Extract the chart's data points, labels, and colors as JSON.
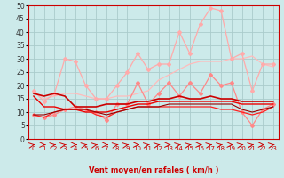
{
  "xlabel": "Vent moyen/en rafales ( km/h )",
  "x": [
    0,
    1,
    2,
    3,
    4,
    5,
    6,
    7,
    8,
    9,
    10,
    11,
    12,
    13,
    14,
    15,
    16,
    17,
    18,
    19,
    20,
    21,
    22,
    23
  ],
  "ylim": [
    0,
    50
  ],
  "yticks": [
    0,
    5,
    10,
    15,
    20,
    25,
    30,
    35,
    40,
    45,
    50
  ],
  "bg_color": "#cceaea",
  "grid_color": "#aacccc",
  "line1_color": "#ffbbbb",
  "line1_values": [
    18,
    15,
    16,
    17,
    17,
    16,
    15,
    15,
    16,
    16,
    17,
    18,
    22,
    24,
    26,
    28,
    29,
    29,
    29,
    30,
    30,
    31,
    28,
    27
  ],
  "line2_color": "#ffaaaa",
  "line2_values": [
    18,
    14,
    17,
    30,
    29,
    20,
    15,
    15,
    20,
    25,
    32,
    26,
    28,
    28,
    40,
    32,
    43,
    49,
    48,
    30,
    32,
    18,
    28,
    28
  ],
  "line3_color": "#ff8888",
  "line3_values": [
    9,
    8,
    9,
    11,
    12,
    11,
    10,
    7,
    13,
    13,
    21,
    13,
    17,
    21,
    16,
    21,
    17,
    24,
    20,
    21,
    10,
    5,
    11,
    13
  ],
  "line4_color": "#cc0000",
  "line4_values": [
    17,
    16,
    17,
    16,
    12,
    12,
    12,
    13,
    13,
    13,
    14,
    14,
    15,
    15,
    16,
    15,
    15,
    16,
    15,
    15,
    14,
    14,
    14,
    14
  ],
  "line5_color": "#ee0000",
  "line5_values": [
    16,
    12,
    12,
    11,
    11,
    10,
    10,
    10,
    11,
    12,
    13,
    13,
    14,
    14,
    14,
    14,
    14,
    14,
    14,
    14,
    13,
    13,
    13,
    13
  ],
  "line6_color": "#ff2222",
  "line6_values": [
    9,
    8,
    10,
    11,
    11,
    11,
    9,
    8,
    10,
    11,
    12,
    12,
    12,
    12,
    12,
    12,
    12,
    12,
    11,
    11,
    10,
    9,
    10,
    12
  ],
  "line7_color": "#990000",
  "line7_values": [
    9,
    9,
    10,
    11,
    11,
    11,
    10,
    9,
    10,
    11,
    12,
    12,
    12,
    13,
    13,
    13,
    13,
    13,
    13,
    13,
    11,
    10,
    11,
    12
  ]
}
